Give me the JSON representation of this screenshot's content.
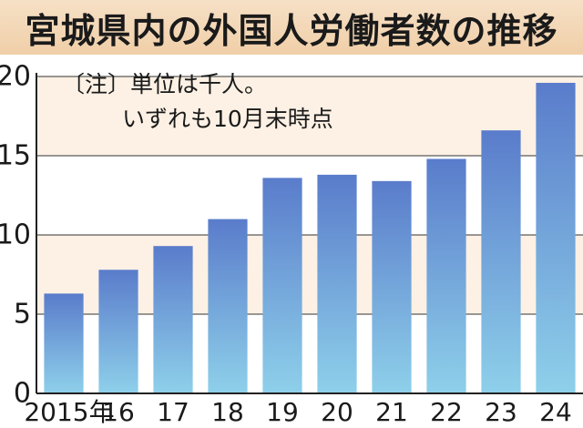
{
  "chart_data": {
    "type": "bar",
    "title": "宮城県内の外国人労働者数の推移",
    "note": [
      "〔注〕単位は千人。",
      "いずれも10月末時点"
    ],
    "categories": [
      "2015年",
      "16",
      "17",
      "18",
      "19",
      "20",
      "21",
      "22",
      "23",
      "24"
    ],
    "values": [
      6.3,
      7.8,
      9.3,
      11.0,
      13.6,
      13.8,
      13.4,
      14.8,
      16.6,
      19.6
    ],
    "yticks": [
      "0",
      "5",
      "10",
      "15",
      "20"
    ],
    "ylim": [
      0,
      20
    ],
    "xlabel": "",
    "ylabel": "",
    "grid": true,
    "colors": {
      "bar_top": "#5a7ccb",
      "bar_bottom": "#8ed0ea",
      "band": "#fcf1e4",
      "title_bg": "#f3d6b6"
    }
  }
}
